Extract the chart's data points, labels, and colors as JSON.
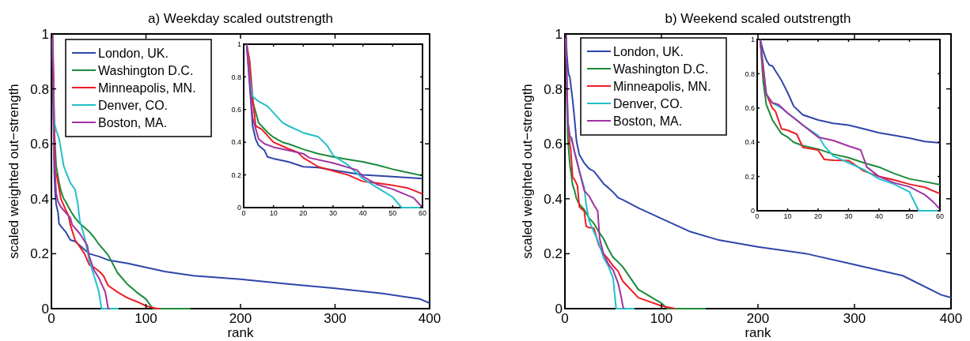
{
  "chart_data": [
    {
      "type": "line",
      "title": "a) Weekday scaled outstrength",
      "xlabel": "rank",
      "ylabel": "scaled weighted out−strength",
      "xlim": [
        0,
        400
      ],
      "ylim": [
        0,
        1
      ],
      "xticks": [
        0,
        100,
        200,
        300,
        400
      ],
      "yticks": [
        0,
        0.2,
        0.4,
        0.6,
        0.8,
        1
      ],
      "legend": "top left",
      "series": [
        {
          "name": "London, UK.",
          "color": "#2e46a8",
          "x": [
            1,
            2,
            3,
            4,
            5,
            7,
            8,
            10,
            15,
            20,
            25,
            30,
            40,
            50,
            60,
            80,
            100,
            120,
            150,
            200,
            250,
            300,
            350,
            390,
            400
          ],
          "values": [
            1,
            0.75,
            0.5,
            0.42,
            0.38,
            0.35,
            0.31,
            0.3,
            0.28,
            0.25,
            0.245,
            0.23,
            0.2,
            0.19,
            0.177,
            0.165,
            0.15,
            0.135,
            0.12,
            0.107,
            0.09,
            0.074,
            0.055,
            0.035,
            0.02
          ]
        },
        {
          "name": "Washington D.C.",
          "color": "#1b8a3a",
          "x": [
            1,
            3,
            5,
            8,
            10,
            13,
            15,
            20,
            25,
            30,
            35,
            40,
            45,
            50,
            55,
            60,
            70,
            80,
            90,
            100,
            105,
            108,
            147
          ],
          "values": [
            1,
            0.65,
            0.52,
            0.46,
            0.43,
            0.4,
            0.39,
            0.357,
            0.33,
            0.31,
            0.295,
            0.28,
            0.26,
            0.235,
            0.215,
            0.195,
            0.13,
            0.09,
            0.06,
            0.035,
            0.01,
            0,
            0
          ]
        },
        {
          "name": "Minneapolis, MN.",
          "color": "#ee1c24",
          "x": [
            1,
            2,
            3,
            4,
            6,
            8,
            10,
            15,
            18,
            20,
            25,
            30,
            35,
            40,
            45,
            50,
            55,
            60,
            70,
            80,
            90,
            100,
            105,
            112,
            115
          ],
          "values": [
            1,
            0.9,
            0.68,
            0.5,
            0.48,
            0.44,
            0.4,
            0.36,
            0.34,
            0.305,
            0.25,
            0.225,
            0.2,
            0.16,
            0.15,
            0.137,
            0.12,
            0.084,
            0.06,
            0.04,
            0.026,
            0.01,
            0.005,
            0,
            0
          ]
        },
        {
          "name": "Denver, CO.",
          "color": "#22c0c8",
          "x": [
            1,
            2,
            3,
            5,
            8,
            10,
            13,
            15,
            20,
            25,
            28,
            30,
            35,
            40,
            45,
            50,
            53,
            71
          ],
          "values": [
            1,
            0.8,
            0.68,
            0.65,
            0.62,
            0.58,
            0.52,
            0.5,
            0.458,
            0.434,
            0.38,
            0.32,
            0.26,
            0.177,
            0.12,
            0.064,
            0,
            0
          ]
        },
        {
          "name": "Boston, MA.",
          "color": "#a033a0",
          "x": [
            1,
            3,
            5,
            7,
            10,
            15,
            20,
            22,
            30,
            38,
            40,
            45,
            50,
            57,
            60,
            62
          ],
          "values": [
            1,
            0.55,
            0.42,
            0.39,
            0.37,
            0.35,
            0.33,
            0.305,
            0.273,
            0.23,
            0.19,
            0.14,
            0.113,
            0.06,
            0,
            0
          ]
        }
      ]
    },
    {
      "type": "line",
      "xlim": [
        0,
        60
      ],
      "ylim": [
        0,
        1
      ],
      "xticks": [
        0,
        10,
        20,
        30,
        40,
        50,
        60
      ],
      "yticks": [
        0,
        0.2,
        0.4,
        0.6,
        0.8,
        1
      ],
      "series": [
        {
          "color": "#2e46a8",
          "x": [
            1,
            2,
            3,
            4,
            5,
            7,
            8,
            10,
            15,
            20,
            25,
            30,
            40,
            50,
            60
          ],
          "values": [
            1,
            0.75,
            0.5,
            0.42,
            0.38,
            0.35,
            0.31,
            0.3,
            0.28,
            0.25,
            0.245,
            0.23,
            0.2,
            0.19,
            0.177
          ]
        },
        {
          "color": "#1b8a3a",
          "x": [
            1,
            3,
            5,
            8,
            10,
            13,
            15,
            20,
            25,
            30,
            35,
            40,
            45,
            50,
            55,
            60
          ],
          "values": [
            1,
            0.65,
            0.52,
            0.46,
            0.43,
            0.4,
            0.39,
            0.357,
            0.33,
            0.31,
            0.295,
            0.28,
            0.26,
            0.235,
            0.215,
            0.195
          ]
        },
        {
          "color": "#ee1c24",
          "x": [
            1,
            2,
            3,
            4,
            6,
            8,
            10,
            15,
            18,
            20,
            25,
            30,
            35,
            40,
            45,
            50,
            55,
            60
          ],
          "values": [
            1,
            0.9,
            0.68,
            0.5,
            0.48,
            0.44,
            0.4,
            0.36,
            0.34,
            0.305,
            0.25,
            0.225,
            0.2,
            0.16,
            0.15,
            0.137,
            0.12,
            0.084
          ]
        },
        {
          "color": "#22c0c8",
          "x": [
            1,
            2,
            3,
            5,
            8,
            10,
            13,
            15,
            20,
            25,
            28,
            30,
            35,
            40,
            45,
            50,
            53,
            60
          ],
          "values": [
            1,
            0.8,
            0.68,
            0.65,
            0.62,
            0.58,
            0.52,
            0.5,
            0.458,
            0.434,
            0.38,
            0.32,
            0.26,
            0.177,
            0.12,
            0.064,
            0,
            0
          ]
        },
        {
          "color": "#a033a0",
          "x": [
            1,
            3,
            5,
            7,
            10,
            15,
            20,
            22,
            30,
            38,
            40,
            45,
            50,
            57,
            60
          ],
          "values": [
            1,
            0.55,
            0.42,
            0.39,
            0.37,
            0.35,
            0.33,
            0.305,
            0.273,
            0.23,
            0.19,
            0.14,
            0.113,
            0.06,
            0
          ]
        }
      ]
    },
    {
      "type": "line",
      "title": "b) Weekend scaled outstrength",
      "xlabel": "rank",
      "ylabel": "scaled weighted out−strength",
      "xlim": [
        0,
        400
      ],
      "ylim": [
        0,
        1
      ],
      "xticks": [
        0,
        100,
        200,
        300,
        400
      ],
      "yticks": [
        0,
        0.2,
        0.4,
        0.6,
        0.8,
        1
      ],
      "legend": "top left",
      "series": [
        {
          "name": "London, UK.",
          "color": "#2e46a8",
          "x": [
            1,
            2,
            3,
            4,
            5,
            8,
            10,
            12,
            15,
            20,
            25,
            30,
            35,
            40,
            45,
            50,
            55,
            60,
            76,
            100,
            130,
            158,
            200,
            250,
            300,
            350,
            390,
            400
          ],
          "values": [
            1,
            0.93,
            0.88,
            0.85,
            0.846,
            0.76,
            0.69,
            0.61,
            0.56,
            0.53,
            0.51,
            0.5,
            0.478,
            0.455,
            0.44,
            0.424,
            0.404,
            0.396,
            0.367,
            0.328,
            0.28,
            0.251,
            0.225,
            0.2,
            0.16,
            0.12,
            0.05,
            0.04
          ]
        },
        {
          "name": "Washington D.C.",
          "color": "#1b8a3a",
          "x": [
            1,
            2,
            3,
            5,
            8,
            10,
            12,
            15,
            20,
            25,
            30,
            35,
            40,
            45,
            50,
            55,
            60,
            76,
            100,
            106,
            146
          ],
          "values": [
            1,
            0.75,
            0.62,
            0.53,
            0.45,
            0.43,
            0.4,
            0.38,
            0.36,
            0.33,
            0.31,
            0.28,
            0.255,
            0.217,
            0.186,
            0.17,
            0.152,
            0.07,
            0.02,
            0,
            0
          ]
        },
        {
          "name": "Minneapolis, MN.",
          "color": "#ee1c24",
          "x": [
            1,
            2,
            3,
            5,
            6,
            8,
            10,
            13,
            15,
            20,
            22,
            25,
            30,
            35,
            40,
            45,
            50,
            55,
            60,
            76,
            100,
            114
          ],
          "values": [
            1,
            0.8,
            0.68,
            0.6,
            0.58,
            0.478,
            0.47,
            0.447,
            0.37,
            0.355,
            0.3,
            0.295,
            0.293,
            0.232,
            0.2,
            0.18,
            0.155,
            0.137,
            0.1,
            0.04,
            0.01,
            0
          ]
        },
        {
          "name": "Denver, CO.",
          "color": "#22c0c8",
          "x": [
            1,
            3,
            5,
            8,
            10,
            13,
            15,
            20,
            22,
            25,
            30,
            35,
            40,
            45,
            50,
            53,
            72
          ],
          "values": [
            1,
            0.68,
            0.63,
            0.6,
            0.57,
            0.53,
            0.5,
            0.44,
            0.38,
            0.32,
            0.28,
            0.24,
            0.186,
            0.155,
            0.11,
            0,
            0
          ]
        },
        {
          "name": "Boston, MA.",
          "color": "#a033a0",
          "x": [
            1,
            3,
            5,
            7,
            10,
            15,
            20,
            25,
            30,
            34,
            36,
            40,
            45,
            50,
            55,
            58,
            60,
            61
          ],
          "values": [
            1,
            0.68,
            0.63,
            0.62,
            0.57,
            0.5,
            0.43,
            0.41,
            0.378,
            0.355,
            0.255,
            0.2,
            0.163,
            0.14,
            0.094,
            0.048,
            0.01,
            0
          ]
        }
      ]
    },
    {
      "type": "line",
      "xlim": [
        0,
        60
      ],
      "ylim": [
        0,
        1
      ],
      "xticks": [
        0,
        10,
        20,
        30,
        40,
        50,
        60
      ],
      "yticks": [
        0,
        0.2,
        0.4,
        0.6,
        0.8,
        1
      ],
      "series": [
        {
          "color": "#2e46a8",
          "x": [
            1,
            2,
            3,
            4,
            5,
            8,
            10,
            12,
            15,
            20,
            25,
            30,
            35,
            40,
            45,
            50,
            55,
            60
          ],
          "values": [
            1,
            0.93,
            0.88,
            0.85,
            0.846,
            0.76,
            0.69,
            0.61,
            0.56,
            0.53,
            0.51,
            0.5,
            0.478,
            0.455,
            0.44,
            0.424,
            0.404,
            0.396
          ]
        },
        {
          "color": "#1b8a3a",
          "x": [
            1,
            2,
            3,
            5,
            8,
            10,
            12,
            15,
            20,
            25,
            30,
            35,
            40,
            45,
            50,
            55,
            60
          ],
          "values": [
            1,
            0.75,
            0.62,
            0.53,
            0.45,
            0.43,
            0.4,
            0.38,
            0.36,
            0.33,
            0.31,
            0.28,
            0.255,
            0.217,
            0.186,
            0.17,
            0.152
          ]
        },
        {
          "color": "#ee1c24",
          "x": [
            1,
            2,
            3,
            5,
            6,
            8,
            10,
            13,
            15,
            20,
            22,
            25,
            30,
            35,
            40,
            45,
            50,
            55,
            60
          ],
          "values": [
            1,
            0.8,
            0.68,
            0.6,
            0.58,
            0.478,
            0.47,
            0.447,
            0.37,
            0.355,
            0.3,
            0.295,
            0.293,
            0.232,
            0.2,
            0.18,
            0.155,
            0.137,
            0.1
          ]
        },
        {
          "color": "#22c0c8",
          "x": [
            1,
            3,
            5,
            8,
            10,
            13,
            15,
            20,
            22,
            25,
            30,
            35,
            40,
            45,
            50,
            53,
            60
          ],
          "values": [
            1,
            0.68,
            0.63,
            0.6,
            0.57,
            0.53,
            0.5,
            0.44,
            0.38,
            0.32,
            0.28,
            0.24,
            0.186,
            0.155,
            0.11,
            0,
            0
          ]
        },
        {
          "color": "#a033a0",
          "x": [
            1,
            3,
            5,
            7,
            10,
            15,
            20,
            25,
            30,
            34,
            36,
            40,
            45,
            50,
            55,
            58,
            60
          ],
          "values": [
            1,
            0.68,
            0.63,
            0.62,
            0.57,
            0.5,
            0.43,
            0.41,
            0.378,
            0.355,
            0.255,
            0.2,
            0.163,
            0.14,
            0.094,
            0.048,
            0.01
          ]
        }
      ]
    }
  ]
}
